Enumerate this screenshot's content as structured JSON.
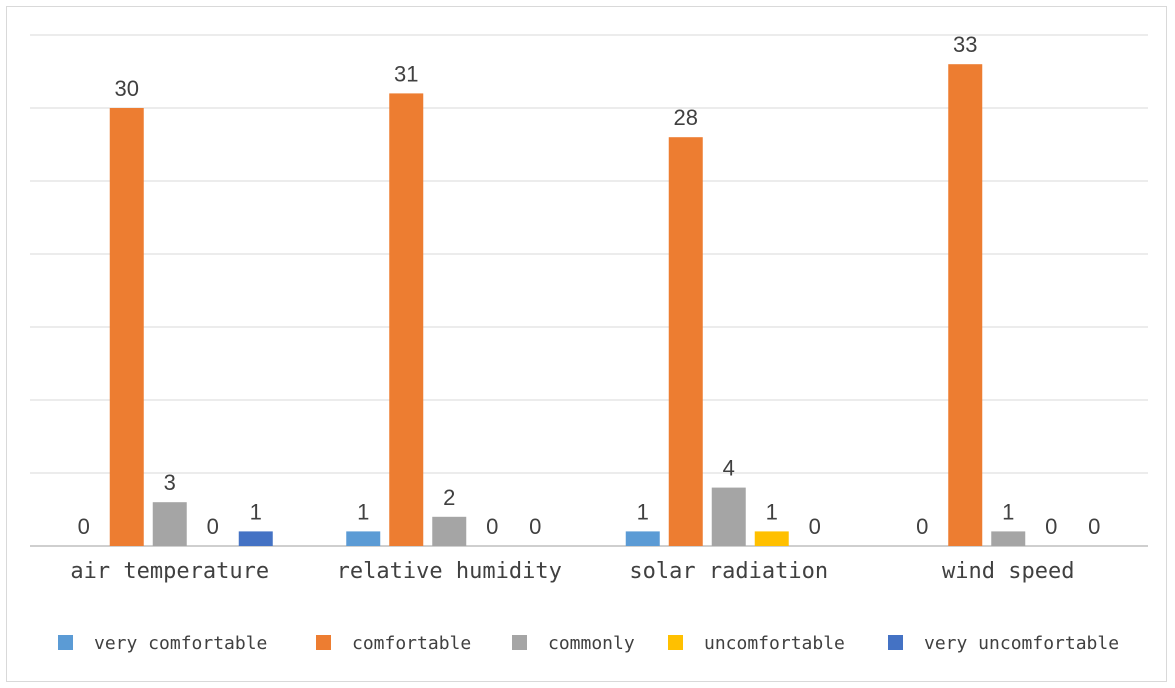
{
  "chart_data": {
    "type": "bar",
    "title": "",
    "xlabel": "",
    "ylabel": "",
    "categories": [
      "air temperature",
      "relative humidity",
      "solar radiation",
      "wind speed"
    ],
    "series": [
      {
        "name": "very comfortable",
        "color": "#5B9BD5",
        "values": [
          0,
          1,
          1,
          0
        ]
      },
      {
        "name": "comfortable",
        "color": "#ED7D31",
        "values": [
          30,
          31,
          28,
          33
        ]
      },
      {
        "name": "commonly",
        "color": "#A5A5A5",
        "values": [
          3,
          2,
          4,
          1
        ]
      },
      {
        "name": "uncomfortable",
        "color": "#FFC000",
        "values": [
          0,
          0,
          1,
          0
        ]
      },
      {
        "name": "very uncomfortable",
        "color": "#4472C4",
        "values": [
          1,
          0,
          0,
          0
        ]
      }
    ],
    "ylim": [
      0,
      35
    ],
    "grid": true,
    "legend_position": "bottom"
  }
}
